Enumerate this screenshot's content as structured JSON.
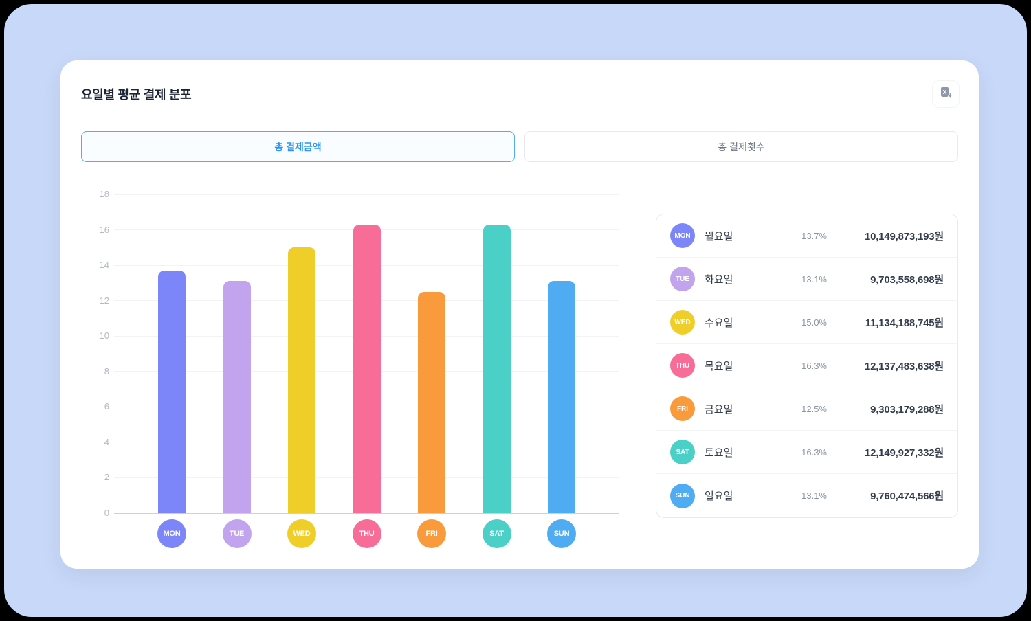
{
  "title": "요일별 평균 결제 분포",
  "export_icon": "excel-download-icon",
  "tabs": [
    {
      "label": "총 결제금액",
      "active": true
    },
    {
      "label": "총 결제횟수",
      "active": false
    }
  ],
  "chart_data": {
    "type": "bar",
    "title": "요일별 평균 결제 분포 - 총 결제금액",
    "categories": [
      "MON",
      "TUE",
      "WED",
      "THU",
      "FRI",
      "SAT",
      "SUN"
    ],
    "values": [
      13.7,
      13.1,
      15.0,
      16.3,
      12.5,
      16.3,
      13.1
    ],
    "colors": [
      "#7D86F8",
      "#C1A3EE",
      "#F0CE2A",
      "#F76D98",
      "#F99B3C",
      "#4AD0C7",
      "#4FABF2"
    ],
    "xlabel": "",
    "ylabel": "",
    "ylim": [
      0,
      18
    ],
    "yticks": [
      0,
      2,
      4,
      6,
      8,
      10,
      12,
      14,
      16,
      18
    ],
    "grid": true,
    "legend_position": "right-panel"
  },
  "legend": {
    "rows": [
      {
        "abbr": "MON",
        "label": "월요일",
        "percent": "13.7%",
        "amount": "10,149,873,193원",
        "color": "#7D86F8"
      },
      {
        "abbr": "TUE",
        "label": "화요일",
        "percent": "13.1%",
        "amount": "9,703,558,698원",
        "color": "#C1A3EE"
      },
      {
        "abbr": "WED",
        "label": "수요일",
        "percent": "15.0%",
        "amount": "11,134,188,745원",
        "color": "#F0CE2A"
      },
      {
        "abbr": "THU",
        "label": "목요일",
        "percent": "16.3%",
        "amount": "12,137,483,638원",
        "color": "#F76D98"
      },
      {
        "abbr": "FRI",
        "label": "금요일",
        "percent": "12.5%",
        "amount": "9,303,179,288원",
        "color": "#F99B3C"
      },
      {
        "abbr": "SAT",
        "label": "토요일",
        "percent": "16.3%",
        "amount": "12,149,927,332원",
        "color": "#4AD0C7"
      },
      {
        "abbr": "SUN",
        "label": "일요일",
        "percent": "13.1%",
        "amount": "9,760,474,566원",
        "color": "#4FABF2"
      }
    ]
  },
  "colors": {
    "page_background": "#C8D8F8",
    "card_background": "#FFFFFF",
    "active_tab_border": "#53AAF6",
    "active_tab_text": "#3094F1",
    "inactive_tab_text": "#6B7684",
    "grid_line": "#F1F4F7",
    "axis_line": "#CBD1D8",
    "tick_text": "#B3BAC5"
  }
}
